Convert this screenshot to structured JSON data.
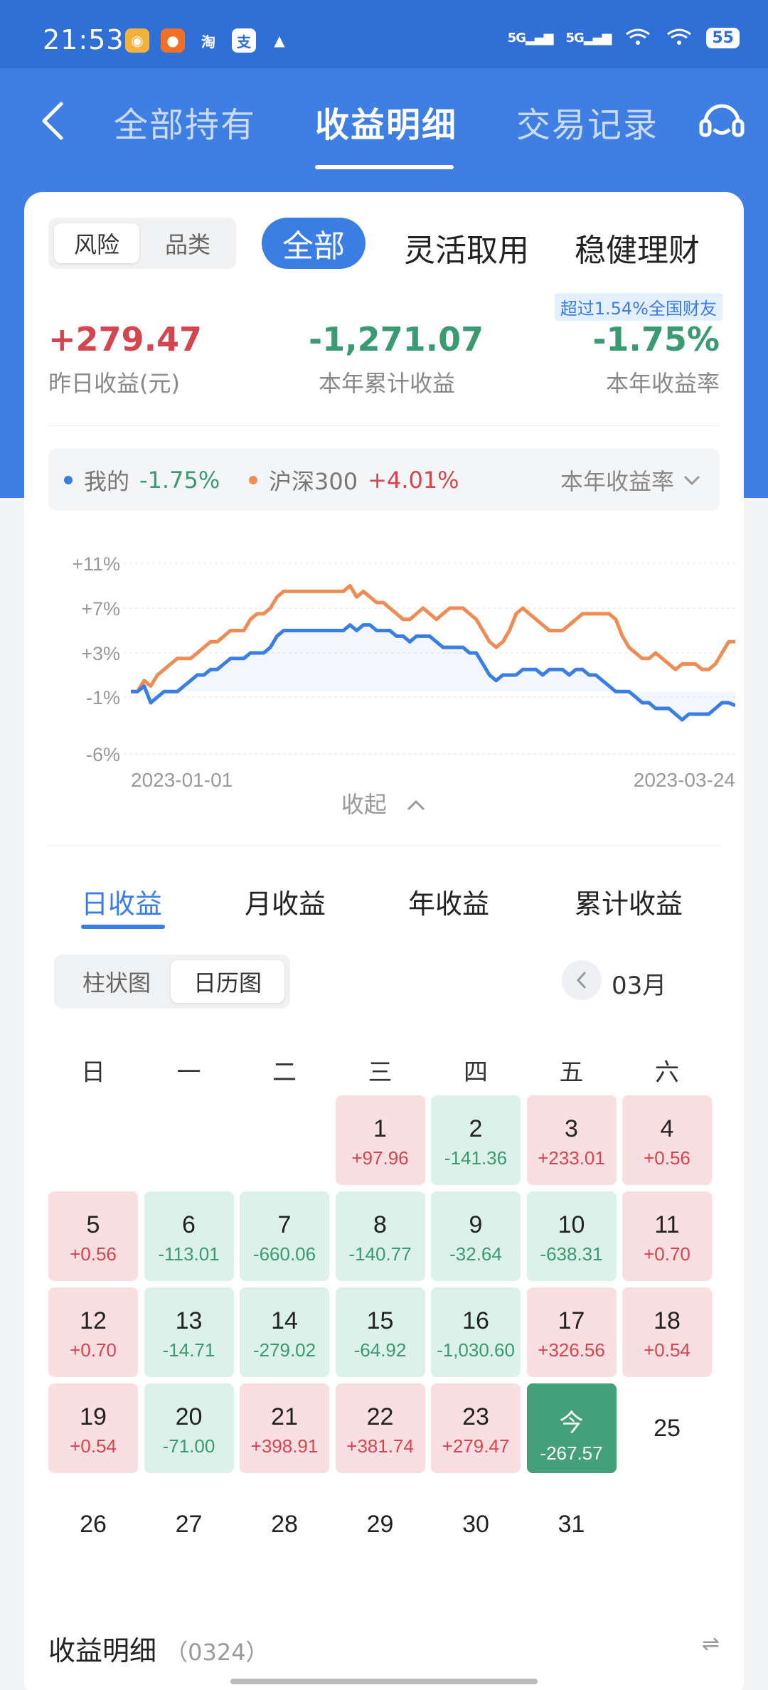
{
  "status": {
    "time": "21:53",
    "apps": [
      {
        "name": "app-1-icon",
        "color": "#f3b23a",
        "glyph": "◉"
      },
      {
        "name": "app-2-icon",
        "color": "#f07028",
        "glyph": "●"
      },
      {
        "name": "taobao-icon",
        "color": "#2f6fd6",
        "glyph": "淘"
      },
      {
        "name": "alipay-icon",
        "color": "#ffffff",
        "glyph": "支"
      },
      {
        "name": "warning-icon",
        "color": "#2f6fd6",
        "glyph": "▲"
      }
    ],
    "net1": "5G",
    "net2": "5G",
    "battery": "55"
  },
  "nav": {
    "tabs": [
      "全部持有",
      "收益明细",
      "交易记录"
    ],
    "active": 1
  },
  "filter": {
    "seg": [
      "风险",
      "品类"
    ],
    "seg_active": 0,
    "categories": [
      "全部",
      "灵活取用",
      "稳健理财"
    ]
  },
  "summary": {
    "rank": "超过1.54%全国财友",
    "yesterday_value": "+279.47",
    "yesterday_label": "昨日收益(元)",
    "year_value": "-1,271.07",
    "year_label": "本年累计收益",
    "rate_value": "-1.75%",
    "rate_label": "本年收益率"
  },
  "legend": {
    "mine_label": "我的",
    "mine_value": "-1.75%",
    "bench_label": "沪深300",
    "bench_value": "+4.01%",
    "metric": "本年收益率"
  },
  "chart_data": {
    "type": "line",
    "y_ticks": [
      "+11%",
      "+7%",
      "+3%",
      "-1%",
      "-6%"
    ],
    "x_labels": [
      "2023-01-01",
      "2023-03-24"
    ],
    "ylim": [
      -6,
      11
    ],
    "colors": {
      "mine": "#3a7ee4",
      "bench": "#ef8b54"
    },
    "series": [
      {
        "name": "我的",
        "values": [
          -0.5,
          -0.5,
          0,
          -1.5,
          -1,
          -0.5,
          -0.5,
          -0.5,
          0,
          0.5,
          1,
          1,
          1.5,
          1.5,
          2,
          2.5,
          2.5,
          2.5,
          3,
          3,
          3,
          3.5,
          4.5,
          5,
          5,
          5,
          5,
          5,
          5,
          5,
          5,
          5,
          5,
          5.5,
          5,
          5.5,
          5.5,
          5,
          5,
          5,
          4.5,
          4.5,
          4,
          4.5,
          4.5,
          4.5,
          4,
          3.5,
          3.5,
          3.5,
          3.5,
          3,
          3,
          2,
          1,
          0.5,
          1,
          1,
          1,
          1.5,
          1.5,
          1.5,
          1,
          1.5,
          1.5,
          1.5,
          1,
          1.5,
          1.5,
          1,
          1,
          0.5,
          0,
          -0.5,
          -0.5,
          -0.5,
          -1,
          -1.5,
          -1.5,
          -2,
          -2,
          -2,
          -2.5,
          -3,
          -2.5,
          -2.5,
          -2.5,
          -2.5,
          -2,
          -1.5,
          -1.5,
          -1.75
        ]
      },
      {
        "name": "沪深300",
        "values": [
          -0.5,
          -0.5,
          0.5,
          0,
          1,
          1.5,
          2,
          2.5,
          2.5,
          2.5,
          3,
          3.5,
          4,
          4,
          4.5,
          5,
          5,
          5,
          6,
          6.5,
          6.5,
          7,
          8,
          8.5,
          8.5,
          8.5,
          8.5,
          8.5,
          8.5,
          8.5,
          8.5,
          8.5,
          8.5,
          9,
          8,
          8.5,
          8,
          7.5,
          7.5,
          7,
          6.5,
          6,
          6,
          6.5,
          7,
          6.5,
          6,
          6.5,
          7,
          7,
          7,
          6.5,
          6,
          5,
          4,
          3.5,
          4,
          5,
          6.5,
          7,
          6.5,
          6,
          5.5,
          5,
          5,
          5,
          5.5,
          6,
          6.5,
          6.5,
          6.5,
          6.5,
          6.5,
          6,
          4.5,
          3.5,
          3,
          2.5,
          2.5,
          3,
          2.5,
          2,
          1.5,
          2,
          2,
          2,
          1.5,
          1.5,
          2,
          3,
          4,
          4.01
        ]
      }
    ]
  },
  "collapse_label": "收起",
  "period_tabs": [
    "日收益",
    "月收益",
    "年收益",
    "累计收益"
  ],
  "period_active": 0,
  "view_seg": [
    "柱状图",
    "日历图"
  ],
  "view_active": 1,
  "month_label": "03月",
  "weekdays": [
    "日",
    "一",
    "二",
    "三",
    "四",
    "五",
    "六"
  ],
  "calendar": [
    {
      "day": "1",
      "value": "+97.96",
      "dir": "up",
      "col": 3,
      "row": 0
    },
    {
      "day": "2",
      "value": "-141.36",
      "dir": "dn",
      "col": 4,
      "row": 0
    },
    {
      "day": "3",
      "value": "+233.01",
      "dir": "up",
      "col": 5,
      "row": 0
    },
    {
      "day": "4",
      "value": "+0.56",
      "dir": "up",
      "col": 6,
      "row": 0
    },
    {
      "day": "5",
      "value": "+0.56",
      "dir": "up",
      "col": 0,
      "row": 1
    },
    {
      "day": "6",
      "value": "-113.01",
      "dir": "dn",
      "col": 1,
      "row": 1
    },
    {
      "day": "7",
      "value": "-660.06",
      "dir": "dn",
      "col": 2,
      "row": 1
    },
    {
      "day": "8",
      "value": "-140.77",
      "dir": "dn",
      "col": 3,
      "row": 1
    },
    {
      "day": "9",
      "value": "-32.64",
      "dir": "dn",
      "col": 4,
      "row": 1
    },
    {
      "day": "10",
      "value": "-638.31",
      "dir": "dn",
      "col": 5,
      "row": 1
    },
    {
      "day": "11",
      "value": "+0.70",
      "dir": "up",
      "col": 6,
      "row": 1
    },
    {
      "day": "12",
      "value": "+0.70",
      "dir": "up",
      "col": 0,
      "row": 2
    },
    {
      "day": "13",
      "value": "-14.71",
      "dir": "dn",
      "col": 1,
      "row": 2
    },
    {
      "day": "14",
      "value": "-279.02",
      "dir": "dn",
      "col": 2,
      "row": 2
    },
    {
      "day": "15",
      "value": "-64.92",
      "dir": "dn",
      "col": 3,
      "row": 2
    },
    {
      "day": "16",
      "value": "-1,030.60",
      "dir": "dn",
      "col": 4,
      "row": 2
    },
    {
      "day": "17",
      "value": "+326.56",
      "dir": "up",
      "col": 5,
      "row": 2
    },
    {
      "day": "18",
      "value": "+0.54",
      "dir": "up",
      "col": 6,
      "row": 2
    },
    {
      "day": "19",
      "value": "+0.54",
      "dir": "up",
      "col": 0,
      "row": 3
    },
    {
      "day": "20",
      "value": "-71.00",
      "dir": "dn",
      "col": 1,
      "row": 3
    },
    {
      "day": "21",
      "value": "+398.91",
      "dir": "up",
      "col": 2,
      "row": 3
    },
    {
      "day": "22",
      "value": "+381.74",
      "dir": "up",
      "col": 3,
      "row": 3
    },
    {
      "day": "23",
      "value": "+279.47",
      "dir": "up",
      "col": 4,
      "row": 3
    },
    {
      "day": "今",
      "value": "-267.57",
      "dir": "today",
      "col": 5,
      "row": 3
    },
    {
      "day": "25",
      "value": "",
      "dir": "empty",
      "col": 6,
      "row": 3
    },
    {
      "day": "26",
      "value": "",
      "dir": "empty",
      "col": 0,
      "row": 4
    },
    {
      "day": "27",
      "value": "",
      "dir": "empty",
      "col": 1,
      "row": 4
    },
    {
      "day": "28",
      "value": "",
      "dir": "empty",
      "col": 2,
      "row": 4
    },
    {
      "day": "29",
      "value": "",
      "dir": "empty",
      "col": 3,
      "row": 4
    },
    {
      "day": "30",
      "value": "",
      "dir": "empty",
      "col": 4,
      "row": 4
    },
    {
      "day": "31",
      "value": "",
      "dir": "empty",
      "col": 5,
      "row": 4
    }
  ],
  "detail": {
    "title": "收益明细",
    "date": "（0324）",
    "sort_label": "⇌"
  }
}
